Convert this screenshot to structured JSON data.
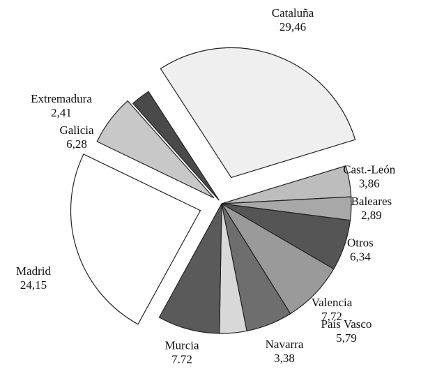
{
  "chart_data": {
    "type": "pie",
    "categories": [
      "Cataluña",
      "Cast.-León",
      "Baleares",
      "Otros",
      "Valencia",
      "País Vasco",
      "Navarra",
      "Murcia",
      "Madrid",
      "Galicia",
      "Extremadura"
    ],
    "values": [
      29.46,
      3.86,
      2.89,
      6.34,
      7.72,
      5.79,
      3.38,
      7.72,
      24.15,
      6.28,
      2.41
    ],
    "value_labels": [
      "29,46",
      "3,86",
      "2,89",
      "6,34",
      "7,72",
      "5,79",
      "3,38",
      "7.72",
      "24,15",
      "6,28",
      "2,41"
    ],
    "colors": [
      "#efefef",
      "#bdbdbd",
      "#a8a8a8",
      "#555555",
      "#9a9a9a",
      "#6e6e6e",
      "#d8d8d8",
      "#5a5a5a",
      "#ffffff",
      "#c8c8c8",
      "#4a4a4a"
    ]
  }
}
